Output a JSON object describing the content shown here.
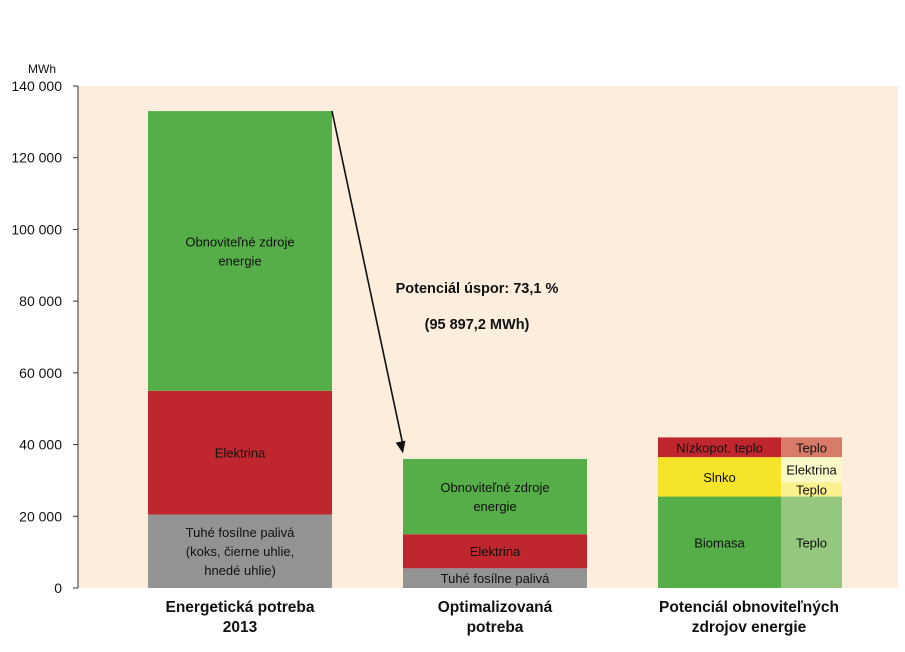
{
  "chart_data": {
    "type": "bar",
    "unit_label": "MWh",
    "ylim": [
      0,
      140000
    ],
    "yticks": [
      0,
      20000,
      40000,
      60000,
      80000,
      100000,
      120000,
      140000
    ],
    "ytick_labels": [
      "0",
      "20 000",
      "40 000",
      "60 000",
      "80 000",
      "100 000",
      "120 000",
      "140 000"
    ],
    "categories": [
      {
        "label_lines": [
          "Energetická potreba",
          "2013"
        ]
      },
      {
        "label_lines": [
          "Optimalizovaná",
          "potreba"
        ]
      },
      {
        "label_lines": [
          "Potenciál obnoviteľných",
          "zdrojov energie"
        ]
      }
    ],
    "bars": [
      {
        "category": 0,
        "segments": [
          {
            "name": "solid-fuels",
            "value": 20500,
            "color": "#939393",
            "label_lines": [
              "Tuhé fosílne palivá",
              "(koks, čierne uhlie,",
              "hnedé uhlie)"
            ]
          },
          {
            "name": "electricity",
            "value": 34500,
            "color": "#bf262e",
            "label_lines": [
              "Elektrina"
            ]
          },
          {
            "name": "renewables",
            "value": 78000,
            "color": "#55ae47",
            "label_lines": [
              "Obnoviteľné zdroje",
              "energie"
            ]
          }
        ]
      },
      {
        "category": 1,
        "segments": [
          {
            "name": "solid-fuels",
            "value": 5500,
            "color": "#939393",
            "label_lines": [
              "Tuhé fosílne palivá"
            ]
          },
          {
            "name": "electricity",
            "value": 9500,
            "color": "#bf262e",
            "label_lines": [
              "Elektrina"
            ]
          },
          {
            "name": "renewables",
            "value": 21000,
            "color": "#55ae47",
            "label_lines": [
              "Obnoviteľné zdroje",
              "energie"
            ]
          }
        ]
      },
      {
        "category": 2,
        "sub": "left",
        "segments": [
          {
            "name": "biomass",
            "value": 25500,
            "color": "#55ae47",
            "label_lines": [
              "Biomasa"
            ]
          },
          {
            "name": "solar",
            "value": 11000,
            "color": "#f5e42a",
            "label_lines": [
              "Slnko"
            ]
          },
          {
            "name": "low-potential-heat",
            "value": 5500,
            "color": "#bf262e",
            "label_lines": [
              "Nízkopot. teplo"
            ]
          }
        ]
      },
      {
        "category": 2,
        "sub": "right",
        "segments": [
          {
            "name": "biomass-heat",
            "value": 25500,
            "color": "#95c77f",
            "label_lines": [
              "Teplo"
            ]
          },
          {
            "name": "solar-heat",
            "value": 4000,
            "color": "#f9f08e",
            "label_lines": [
              "Teplo"
            ]
          },
          {
            "name": "solar-electricity",
            "value": 7000,
            "color": "#fcf8c8",
            "label_lines": [
              "Elektrina"
            ]
          },
          {
            "name": "low-potential-heat-out",
            "value": 5500,
            "color": "#d87b68",
            "label_lines": [
              "Teplo"
            ]
          }
        ]
      }
    ],
    "annotation": {
      "lines": [
        "Potenciál úspor: 73,1 %",
        "(95 897,2 MWh)"
      ],
      "from_value": 133000,
      "to_value": 37000
    },
    "colors": {
      "plot_background": "#fdeddd",
      "axis": "#333333",
      "arrow": "#111111"
    }
  }
}
